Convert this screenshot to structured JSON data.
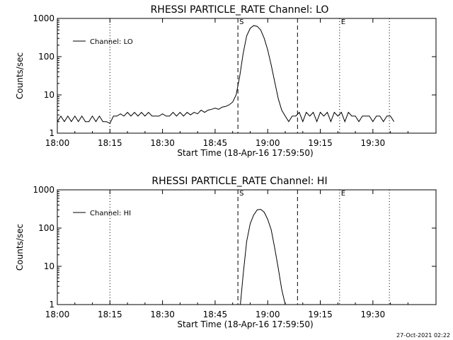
{
  "footer_timestamp": "27-Oct-2021 02:22",
  "colors": {
    "background": "#ffffff",
    "foreground": "#000000"
  },
  "chart_data": [
    {
      "type": "line",
      "title": "RHESSI PARTICLE_RATE Channel: LO",
      "xlabel": "Start Time (18-Apr-16 17:59:50)",
      "ylabel": "Counts/sec",
      "xlim": [
        0,
        108
      ],
      "ylim": [
        1,
        1000
      ],
      "yscale": "log",
      "x_tick_labels": [
        "18:00",
        "18:15",
        "18:30",
        "18:45",
        "19:00",
        "19:15",
        "19:30"
      ],
      "x_tick_values": [
        0,
        15,
        30,
        45,
        60,
        75,
        90
      ],
      "y_tick_labels": [
        "1",
        "10",
        "100",
        "1000"
      ],
      "y_tick_values": [
        1,
        10,
        100,
        1000
      ],
      "legend": {
        "label": "Channel: LO",
        "position": "top-left"
      },
      "markers": [
        {
          "label": "S",
          "x": 51.5,
          "style": "dashed"
        },
        {
          "label": "",
          "x": 68.5,
          "style": "dashed"
        },
        {
          "label": "",
          "x": 15.0,
          "style": "dotted"
        },
        {
          "label": "E",
          "x": 80.5,
          "style": "dotted"
        },
        {
          "label": "",
          "x": 94.7,
          "style": "dotted"
        }
      ],
      "series": [
        {
          "name": "Channel: LO",
          "x": [
            0,
            1,
            2,
            3,
            4,
            5,
            6,
            7,
            8,
            9,
            10,
            11,
            12,
            13,
            14,
            15,
            16,
            17,
            18,
            19,
            20,
            21,
            22,
            23,
            24,
            25,
            26,
            27,
            28,
            29,
            30,
            31,
            32,
            33,
            34,
            35,
            36,
            37,
            38,
            39,
            40,
            41,
            42,
            43,
            44,
            45,
            46,
            47,
            48,
            49,
            50,
            51,
            52,
            53,
            54,
            55,
            56,
            57,
            58,
            59,
            60,
            61,
            62,
            63,
            64,
            65,
            66,
            67,
            68,
            69,
            70,
            71,
            72,
            73,
            74,
            75,
            76,
            77,
            78,
            79,
            80,
            81,
            82,
            83,
            84,
            85,
            86,
            87,
            88,
            89,
            90,
            91,
            92,
            93,
            94,
            95,
            96
          ],
          "y": [
            2,
            2.8,
            2,
            2.8,
            2,
            2.8,
            2,
            2.8,
            2,
            2,
            2.8,
            2,
            2.8,
            2,
            2,
            1.8,
            2.8,
            2.8,
            3.2,
            2.8,
            3.5,
            2.8,
            3.5,
            2.8,
            3.5,
            2.8,
            3.5,
            2.8,
            2.8,
            2.8,
            3.2,
            2.8,
            2.8,
            3.5,
            2.8,
            3.5,
            2.8,
            3.5,
            3,
            3.5,
            3.2,
            4,
            3.5,
            4,
            4.2,
            4.5,
            4.2,
            4.8,
            5,
            5.5,
            6.5,
            10,
            30,
            120,
            350,
            550,
            650,
            620,
            500,
            300,
            150,
            60,
            22,
            8,
            4,
            2.8,
            2,
            2.8,
            2.8,
            3.5,
            2,
            3.5,
            2.8,
            3.5,
            2,
            3.5,
            2.8,
            3.5,
            2,
            3.5,
            2.8,
            3.5,
            2,
            3.5,
            2.8,
            2.8,
            2,
            2.8,
            2.8,
            2.8,
            2,
            2.8,
            2.8,
            2,
            2.8,
            2.8,
            2
          ]
        }
      ]
    },
    {
      "type": "line",
      "title": "RHESSI PARTICLE_RATE Channel: HI",
      "xlabel": "Start Time (18-Apr-16 17:59:50)",
      "ylabel": "Counts/sec",
      "xlim": [
        0,
        108
      ],
      "ylim": [
        1,
        1000
      ],
      "yscale": "log",
      "x_tick_labels": [
        "18:00",
        "18:15",
        "18:30",
        "18:45",
        "19:00",
        "19:15",
        "19:30"
      ],
      "x_tick_values": [
        0,
        15,
        30,
        45,
        60,
        75,
        90
      ],
      "y_tick_labels": [
        "1",
        "10",
        "100",
        "1000"
      ],
      "y_tick_values": [
        1,
        10,
        100,
        1000
      ],
      "legend": {
        "label": "Channel: HI",
        "position": "top-left"
      },
      "markers": [
        {
          "label": "S",
          "x": 51.5,
          "style": "dashed"
        },
        {
          "label": "",
          "x": 68.5,
          "style": "dashed"
        },
        {
          "label": "",
          "x": 15.0,
          "style": "dotted"
        },
        {
          "label": "E",
          "x": 80.5,
          "style": "dotted"
        },
        {
          "label": "",
          "x": 94.7,
          "style": "dotted"
        }
      ],
      "series": [
        {
          "name": "Channel: HI",
          "x": [
            52.2,
            53,
            54,
            55,
            56,
            57,
            58,
            59,
            60,
            61,
            62,
            63,
            64,
            65
          ],
          "y": [
            1,
            6,
            45,
            130,
            220,
            300,
            310,
            260,
            170,
            90,
            30,
            9,
            2.5,
            1
          ]
        }
      ]
    }
  ]
}
